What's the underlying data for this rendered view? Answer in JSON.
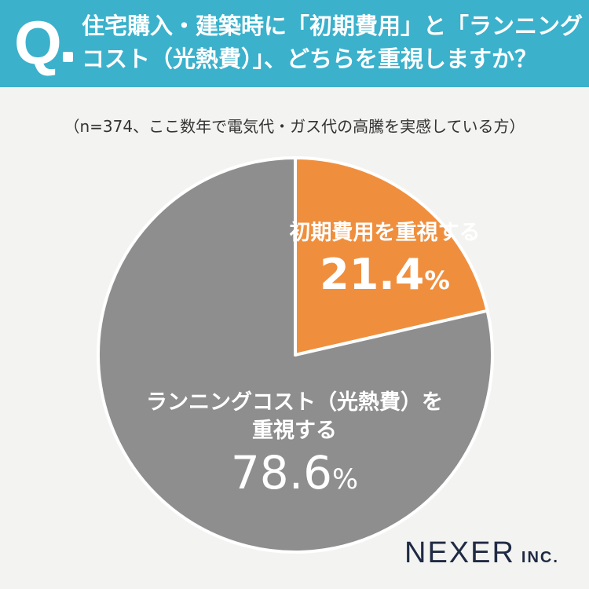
{
  "header": {
    "q_mark": "Q",
    "question_line1": "住宅購入・建築時に「初期費用」と「ランニング",
    "question_line2": "コスト（光熱費）」、どちらを重視しますか？"
  },
  "note": "（n=374、ここ数年で電気代・ガス代の高騰を実感している方）",
  "chart_data": {
    "type": "pie",
    "title": "",
    "start_angle": "12 o'clock, clockwise",
    "slices": [
      {
        "label": "初期費用を重視する",
        "value": 21.4,
        "value_text": "21.4",
        "unit": "%",
        "color": "#ef8f3e"
      },
      {
        "label_line1": "ランニングコスト（光熱費）を",
        "label_line2": "重視する",
        "value": 78.6,
        "value_text": "78.6",
        "unit": "%",
        "color": "#8e8e8e"
      }
    ]
  },
  "logo": {
    "main": "NEXER",
    "suffix": "INC."
  }
}
